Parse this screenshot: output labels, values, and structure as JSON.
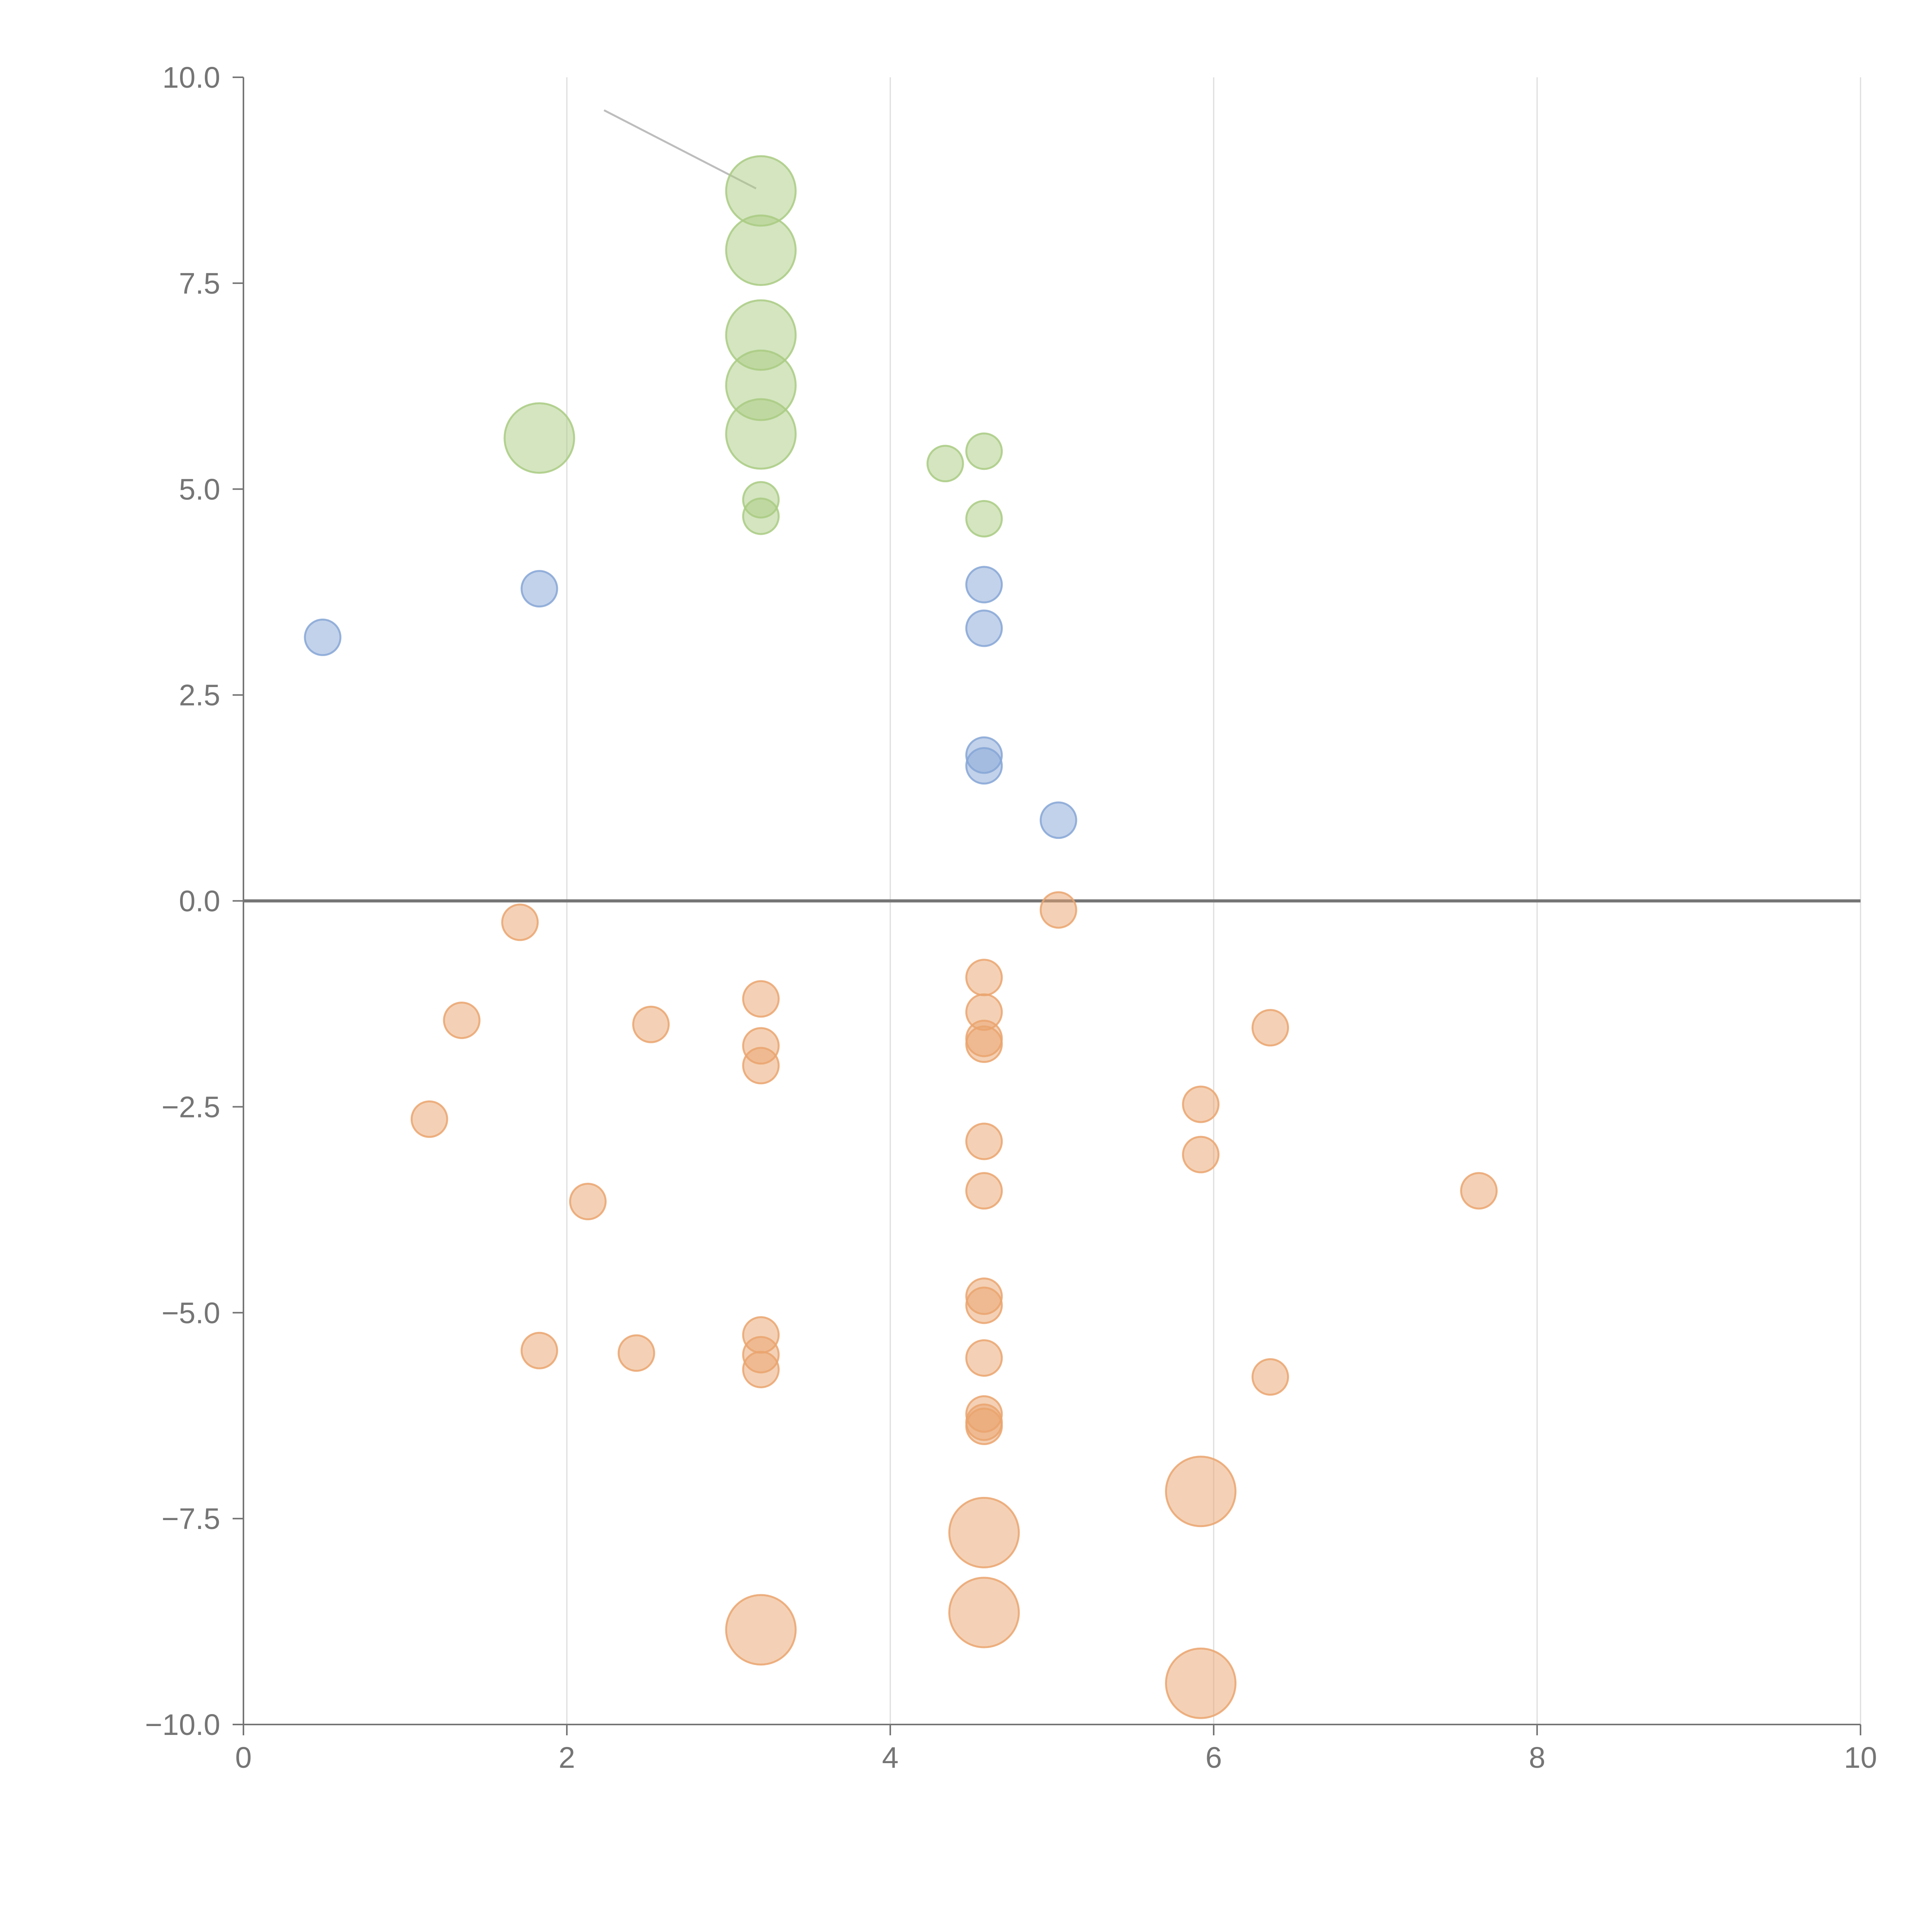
{
  "chart_data": {
    "type": "scatter",
    "subtype": "bubble",
    "title": "",
    "xlabel": "",
    "ylabel": "",
    "xlim": [
      0,
      10
    ],
    "ylim": [
      -10,
      10
    ],
    "x_ticks": [
      0,
      2,
      4,
      6,
      8,
      10
    ],
    "y_ticks": [
      10,
      7.5,
      5,
      2.5,
      0,
      -2.5,
      -5,
      -7.5,
      -10
    ],
    "x_tick_labels": [
      "0",
      "2",
      "4",
      "6",
      "8",
      "10"
    ],
    "y_tick_labels": [
      "10.0",
      "7.5",
      "5.0",
      "2.5",
      "0.0",
      "−2.5",
      "−5.0",
      "−7.5",
      "−10.0"
    ],
    "grid": "vertical",
    "zero_line": true,
    "legend": "none",
    "size_scale": {
      "small": 1,
      "large": 2
    },
    "colors": {
      "green": "#a9cb82",
      "blue": "#86a6d6",
      "orange": "#eaa46e",
      "axis": "#757575",
      "grid": "#dddddd",
      "connector": "#bdbdbd"
    },
    "series": [
      {
        "name": "green",
        "points": [
          {
            "x": 3.2,
            "y": 8.62,
            "size": 2
          },
          {
            "x": 3.2,
            "y": 7.9,
            "size": 2
          },
          {
            "x": 3.2,
            "y": 6.87,
            "size": 2
          },
          {
            "x": 3.2,
            "y": 6.26,
            "size": 2
          },
          {
            "x": 3.2,
            "y": 5.67,
            "size": 2
          },
          {
            "x": 1.83,
            "y": 5.62,
            "size": 2
          },
          {
            "x": 3.2,
            "y": 4.87,
            "size": 1
          },
          {
            "x": 3.2,
            "y": 4.67,
            "size": 1
          },
          {
            "x": 4.34,
            "y": 5.31,
            "size": 1
          },
          {
            "x": 4.58,
            "y": 5.46,
            "size": 1
          },
          {
            "x": 4.58,
            "y": 4.64,
            "size": 1
          }
        ]
      },
      {
        "name": "blue",
        "points": [
          {
            "x": 0.49,
            "y": 3.2,
            "size": 1
          },
          {
            "x": 1.83,
            "y": 3.79,
            "size": 1
          },
          {
            "x": 4.58,
            "y": 3.84,
            "size": 1
          },
          {
            "x": 4.58,
            "y": 3.31,
            "size": 1
          },
          {
            "x": 4.58,
            "y": 1.77,
            "size": 1
          },
          {
            "x": 4.58,
            "y": 1.64,
            "size": 1
          },
          {
            "x": 5.04,
            "y": 0.98,
            "size": 1
          }
        ]
      },
      {
        "name": "orange",
        "points": [
          {
            "x": 1.71,
            "y": -0.26,
            "size": 1
          },
          {
            "x": 5.04,
            "y": -0.11,
            "size": 1
          },
          {
            "x": 1.35,
            "y": -1.45,
            "size": 1
          },
          {
            "x": 2.52,
            "y": -1.5,
            "size": 1
          },
          {
            "x": 3.2,
            "y": -1.19,
            "size": 1
          },
          {
            "x": 3.2,
            "y": -1.76,
            "size": 1
          },
          {
            "x": 3.2,
            "y": -2.0,
            "size": 1
          },
          {
            "x": 4.58,
            "y": -0.93,
            "size": 1
          },
          {
            "x": 4.58,
            "y": -1.35,
            "size": 1
          },
          {
            "x": 4.58,
            "y": -1.67,
            "size": 1
          },
          {
            "x": 4.58,
            "y": -1.74,
            "size": 1
          },
          {
            "x": 6.35,
            "y": -1.54,
            "size": 1
          },
          {
            "x": 1.15,
            "y": -2.65,
            "size": 1
          },
          {
            "x": 5.92,
            "y": -2.47,
            "size": 1
          },
          {
            "x": 5.92,
            "y": -3.08,
            "size": 1
          },
          {
            "x": 4.58,
            "y": -2.92,
            "size": 1
          },
          {
            "x": 4.58,
            "y": -3.52,
            "size": 1
          },
          {
            "x": 2.13,
            "y": -3.65,
            "size": 1
          },
          {
            "x": 7.64,
            "y": -3.52,
            "size": 1
          },
          {
            "x": 4.58,
            "y": -4.8,
            "size": 1
          },
          {
            "x": 4.58,
            "y": -4.91,
            "size": 1
          },
          {
            "x": 1.83,
            "y": -5.46,
            "size": 1
          },
          {
            "x": 2.43,
            "y": -5.49,
            "size": 1
          },
          {
            "x": 3.2,
            "y": -5.27,
            "size": 1
          },
          {
            "x": 3.2,
            "y": -5.51,
            "size": 1
          },
          {
            "x": 3.2,
            "y": -5.69,
            "size": 1
          },
          {
            "x": 4.58,
            "y": -5.55,
            "size": 1
          },
          {
            "x": 6.35,
            "y": -5.78,
            "size": 1
          },
          {
            "x": 4.58,
            "y": -6.23,
            "size": 1
          },
          {
            "x": 4.58,
            "y": -6.33,
            "size": 1
          },
          {
            "x": 4.58,
            "y": -6.38,
            "size": 1
          },
          {
            "x": 5.92,
            "y": -7.17,
            "size": 2
          },
          {
            "x": 4.58,
            "y": -7.67,
            "size": 2
          },
          {
            "x": 4.58,
            "y": -8.64,
            "size": 2
          },
          {
            "x": 3.2,
            "y": -8.85,
            "size": 2
          },
          {
            "x": 5.92,
            "y": -9.5,
            "size": 2
          }
        ]
      }
    ],
    "annotations": [
      {
        "from": {
          "x": 2.23,
          "y": 9.6
        },
        "to": {
          "x": 3.17,
          "y": 8.65
        }
      }
    ]
  }
}
